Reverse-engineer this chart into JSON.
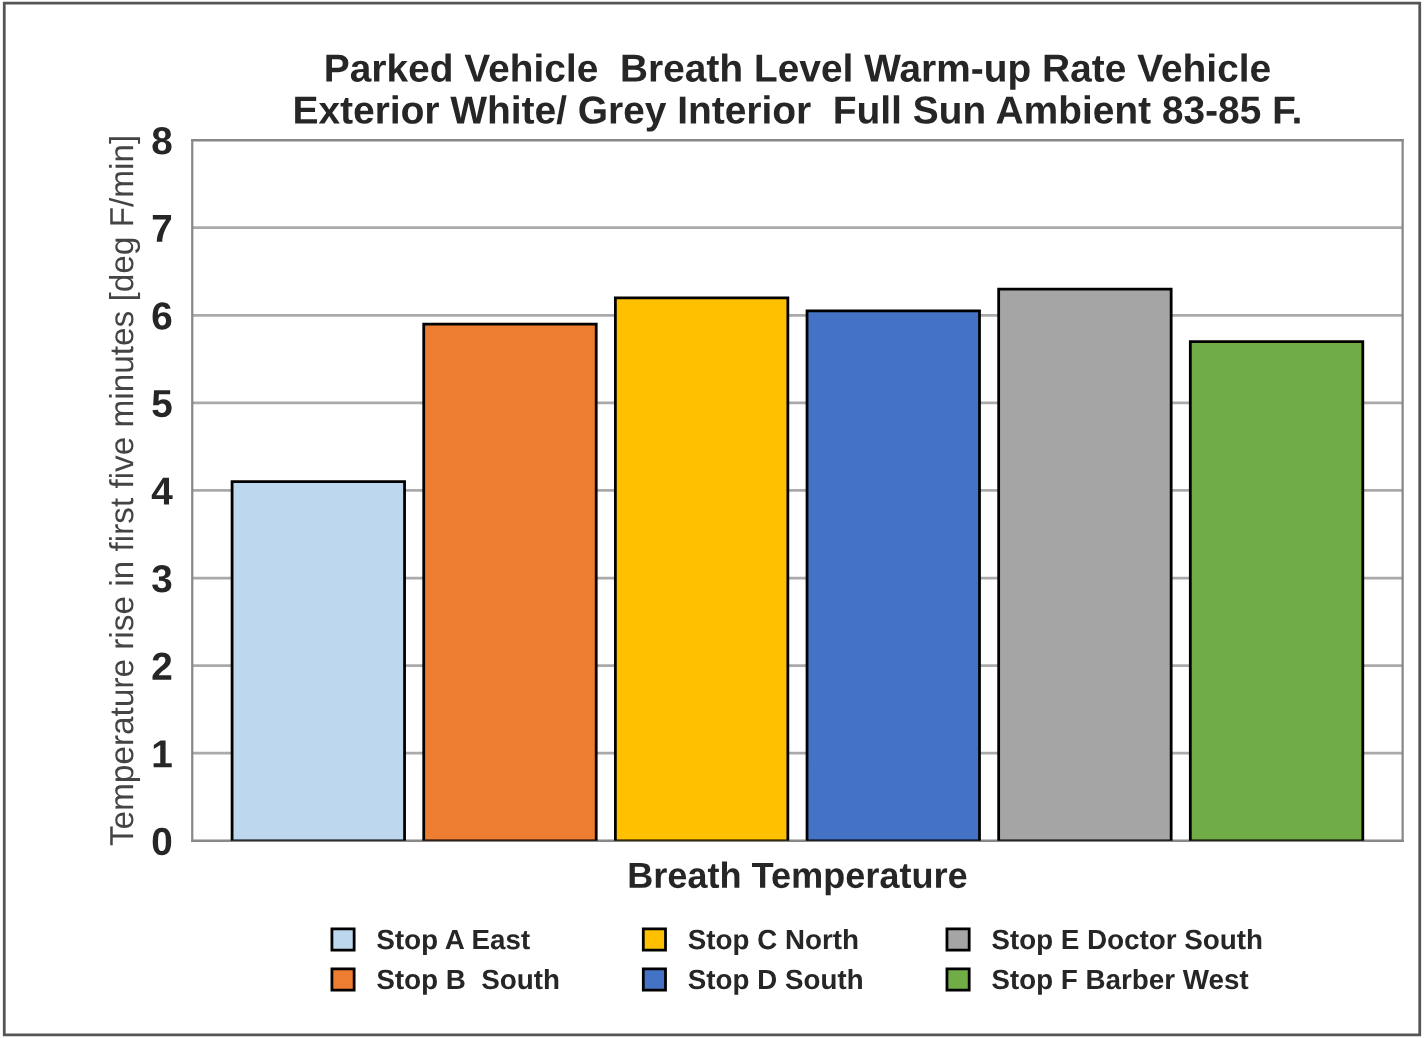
{
  "chart_data": {
    "type": "bar",
    "title": "Parked Vehicle  Breath Level Warm-up Rate Vehicle\nExterior White/ Grey Interior  Full Sun Ambient 83-85 F.",
    "xlabel": "Breath Temperature",
    "ylabel": "Temperature rise in first five minutes [deg F/min]",
    "categories": [
      null
    ],
    "series": [
      {
        "name": "Stop A East",
        "color": "#bdd7ee",
        "values": [
          4.1
        ]
      },
      {
        "name": "Stop B  South",
        "color": "#ed7d31",
        "values": [
          5.9
        ]
      },
      {
        "name": "Stop C North",
        "color": "#ffc000",
        "values": [
          6.2
        ]
      },
      {
        "name": "Stop D South",
        "color": "#4472c4",
        "values": [
          6.05
        ]
      },
      {
        "name": "Stop E Doctor South",
        "color": "#a5a5a5",
        "values": [
          6.3
        ]
      },
      {
        "name": "Stop F Barber West",
        "color": "#70ad47",
        "values": [
          5.7
        ]
      }
    ],
    "ylim": [
      0,
      8
    ],
    "yticks": [
      0,
      1,
      2,
      3,
      4,
      5,
      6,
      7,
      8
    ],
    "grid": "y",
    "legend": "bottom"
  }
}
